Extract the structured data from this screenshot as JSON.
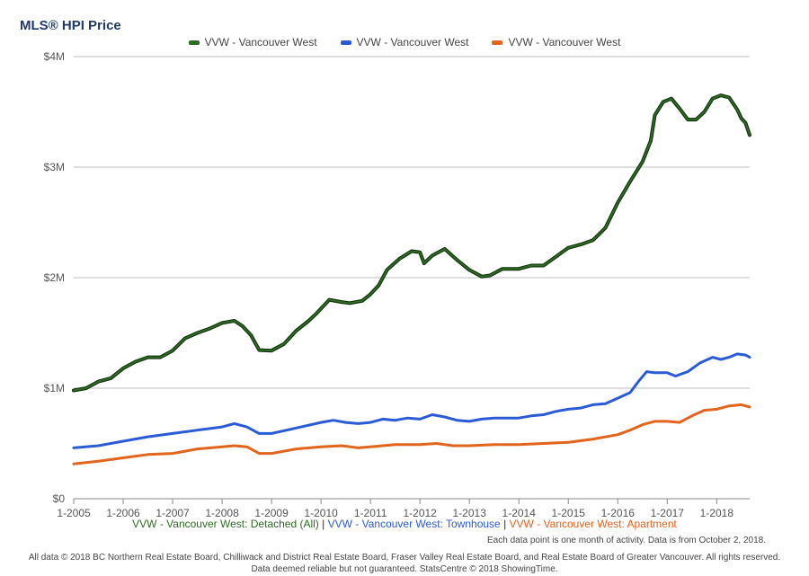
{
  "chart_data": {
    "type": "line",
    "title": "MLS® HPI Price",
    "legend": [
      "VVW - Vancouver West",
      "VVW - Vancouver West",
      "VVW - Vancouver West"
    ],
    "colors": [
      "#2d6b22",
      "#2a5bd7",
      "#e3641c"
    ],
    "y_ticks": [
      "$0",
      "$1M",
      "$2M",
      "$3M",
      "$4M"
    ],
    "ylim": [
      0,
      4000000
    ],
    "x_ticks": [
      "1-2005",
      "1-2006",
      "1-2007",
      "1-2008",
      "1-2009",
      "1-2010",
      "1-2011",
      "1-2012",
      "1-2013",
      "1-2014",
      "1-2015",
      "1-2016",
      "1-2017",
      "1-2018"
    ],
    "x_range": [
      "1-2005",
      "9-2018"
    ],
    "grid": true,
    "series": [
      {
        "name": "VVW - Vancouver West: Detached (All)",
        "color": "#2d6b22",
        "points": [
          [
            "2005-01",
            980000
          ],
          [
            "2005-04",
            1000000
          ],
          [
            "2005-07",
            1060000
          ],
          [
            "2005-10",
            1090000
          ],
          [
            "2006-01",
            1180000
          ],
          [
            "2006-04",
            1240000
          ],
          [
            "2006-07",
            1280000
          ],
          [
            "2006-10",
            1280000
          ],
          [
            "2007-01",
            1340000
          ],
          [
            "2007-04",
            1450000
          ],
          [
            "2007-07",
            1500000
          ],
          [
            "2007-10",
            1540000
          ],
          [
            "2008-01",
            1590000
          ],
          [
            "2008-04",
            1610000
          ],
          [
            "2008-06",
            1560000
          ],
          [
            "2008-08",
            1480000
          ],
          [
            "2008-10",
            1345000
          ],
          [
            "2009-01",
            1340000
          ],
          [
            "2009-04",
            1400000
          ],
          [
            "2009-07",
            1520000
          ],
          [
            "2009-10",
            1610000
          ],
          [
            "2009-12",
            1680000
          ],
          [
            "2010-03",
            1800000
          ],
          [
            "2010-06",
            1780000
          ],
          [
            "2010-08",
            1770000
          ],
          [
            "2010-11",
            1790000
          ],
          [
            "2011-01",
            1850000
          ],
          [
            "2011-03",
            1930000
          ],
          [
            "2011-05",
            2070000
          ],
          [
            "2011-08",
            2170000
          ],
          [
            "2011-11",
            2240000
          ],
          [
            "2012-01",
            2230000
          ],
          [
            "2012-02",
            2130000
          ],
          [
            "2012-04",
            2200000
          ],
          [
            "2012-07",
            2260000
          ],
          [
            "2012-10",
            2160000
          ],
          [
            "2013-01",
            2070000
          ],
          [
            "2013-04",
            2010000
          ],
          [
            "2013-06",
            2020000
          ],
          [
            "2013-09",
            2080000
          ],
          [
            "2014-01",
            2080000
          ],
          [
            "2014-04",
            2110000
          ],
          [
            "2014-07",
            2110000
          ],
          [
            "2014-10",
            2190000
          ],
          [
            "2015-01",
            2270000
          ],
          [
            "2015-04",
            2300000
          ],
          [
            "2015-07",
            2340000
          ],
          [
            "2015-10",
            2450000
          ],
          [
            "2016-01",
            2680000
          ],
          [
            "2016-04",
            2870000
          ],
          [
            "2016-07",
            3050000
          ],
          [
            "2016-09",
            3240000
          ],
          [
            "2016-10",
            3470000
          ],
          [
            "2016-12",
            3590000
          ],
          [
            "2017-02",
            3620000
          ],
          [
            "2017-04",
            3530000
          ],
          [
            "2017-06",
            3430000
          ],
          [
            "2017-08",
            3430000
          ],
          [
            "2017-10",
            3500000
          ],
          [
            "2017-12",
            3620000
          ],
          [
            "2018-02",
            3650000
          ],
          [
            "2018-04",
            3630000
          ],
          [
            "2018-06",
            3520000
          ],
          [
            "2018-07",
            3440000
          ],
          [
            "2018-08",
            3400000
          ],
          [
            "2018-09",
            3290000
          ]
        ]
      },
      {
        "name": "VVW - Vancouver West: Townhouse",
        "color": "#2a5bd7",
        "points": [
          [
            "2005-01",
            460000
          ],
          [
            "2005-07",
            480000
          ],
          [
            "2006-01",
            520000
          ],
          [
            "2006-07",
            560000
          ],
          [
            "2007-01",
            590000
          ],
          [
            "2007-07",
            620000
          ],
          [
            "2008-01",
            650000
          ],
          [
            "2008-04",
            680000
          ],
          [
            "2008-07",
            650000
          ],
          [
            "2008-10",
            590000
          ],
          [
            "2009-01",
            590000
          ],
          [
            "2009-07",
            640000
          ],
          [
            "2010-01",
            690000
          ],
          [
            "2010-04",
            710000
          ],
          [
            "2010-07",
            690000
          ],
          [
            "2010-10",
            680000
          ],
          [
            "2011-01",
            690000
          ],
          [
            "2011-04",
            720000
          ],
          [
            "2011-07",
            710000
          ],
          [
            "2011-10",
            730000
          ],
          [
            "2012-01",
            720000
          ],
          [
            "2012-04",
            760000
          ],
          [
            "2012-07",
            740000
          ],
          [
            "2012-10",
            710000
          ],
          [
            "2013-01",
            700000
          ],
          [
            "2013-04",
            720000
          ],
          [
            "2013-07",
            730000
          ],
          [
            "2013-10",
            730000
          ],
          [
            "2014-01",
            730000
          ],
          [
            "2014-04",
            750000
          ],
          [
            "2014-07",
            760000
          ],
          [
            "2014-10",
            790000
          ],
          [
            "2015-01",
            810000
          ],
          [
            "2015-04",
            820000
          ],
          [
            "2015-07",
            850000
          ],
          [
            "2015-10",
            860000
          ],
          [
            "2016-01",
            910000
          ],
          [
            "2016-04",
            960000
          ],
          [
            "2016-06",
            1060000
          ],
          [
            "2016-08",
            1150000
          ],
          [
            "2016-10",
            1140000
          ],
          [
            "2017-01",
            1140000
          ],
          [
            "2017-03",
            1110000
          ],
          [
            "2017-06",
            1150000
          ],
          [
            "2017-09",
            1230000
          ],
          [
            "2017-12",
            1280000
          ],
          [
            "2018-02",
            1260000
          ],
          [
            "2018-04",
            1280000
          ],
          [
            "2018-06",
            1310000
          ],
          [
            "2018-08",
            1300000
          ],
          [
            "2018-09",
            1280000
          ]
        ]
      },
      {
        "name": "VVW - Vancouver West: Apartment",
        "color": "#e3641c",
        "points": [
          [
            "2005-01",
            315000
          ],
          [
            "2005-07",
            340000
          ],
          [
            "2006-01",
            370000
          ],
          [
            "2006-07",
            400000
          ],
          [
            "2007-01",
            410000
          ],
          [
            "2007-07",
            450000
          ],
          [
            "2008-01",
            470000
          ],
          [
            "2008-04",
            480000
          ],
          [
            "2008-07",
            470000
          ],
          [
            "2008-10",
            410000
          ],
          [
            "2009-01",
            410000
          ],
          [
            "2009-07",
            450000
          ],
          [
            "2010-01",
            470000
          ],
          [
            "2010-06",
            480000
          ],
          [
            "2010-10",
            460000
          ],
          [
            "2011-01",
            470000
          ],
          [
            "2011-07",
            490000
          ],
          [
            "2012-01",
            490000
          ],
          [
            "2012-05",
            500000
          ],
          [
            "2012-09",
            480000
          ],
          [
            "2013-01",
            480000
          ],
          [
            "2013-07",
            490000
          ],
          [
            "2014-01",
            490000
          ],
          [
            "2014-07",
            500000
          ],
          [
            "2015-01",
            510000
          ],
          [
            "2015-07",
            540000
          ],
          [
            "2016-01",
            580000
          ],
          [
            "2016-04",
            620000
          ],
          [
            "2016-07",
            670000
          ],
          [
            "2016-10",
            700000
          ],
          [
            "2017-01",
            700000
          ],
          [
            "2017-04",
            690000
          ],
          [
            "2017-07",
            750000
          ],
          [
            "2017-10",
            800000
          ],
          [
            "2018-01",
            810000
          ],
          [
            "2018-04",
            840000
          ],
          [
            "2018-07",
            850000
          ],
          [
            "2018-09",
            830000
          ]
        ]
      }
    ]
  },
  "caption": {
    "detached": "VVW - Vancouver West: Detached (All)",
    "townhouse": "VVW - Vancouver West: Townhouse",
    "apartment": "VVW - Vancouver West: Apartment",
    "separator": "|"
  },
  "note": "Each data point is one month of activity. Data is from October 2, 2018.",
  "footer": {
    "line1": "All data © 2018 BC Northern Real Estate Board, Chilliwack and District Real Estate Board, Fraser Valley Real Estate Board, and Real Estate Board of Greater Vancouver. All rights reserved.",
    "line2": "Data deemed reliable but not guaranteed. StatsCentre © 2018 ShowingTime."
  }
}
